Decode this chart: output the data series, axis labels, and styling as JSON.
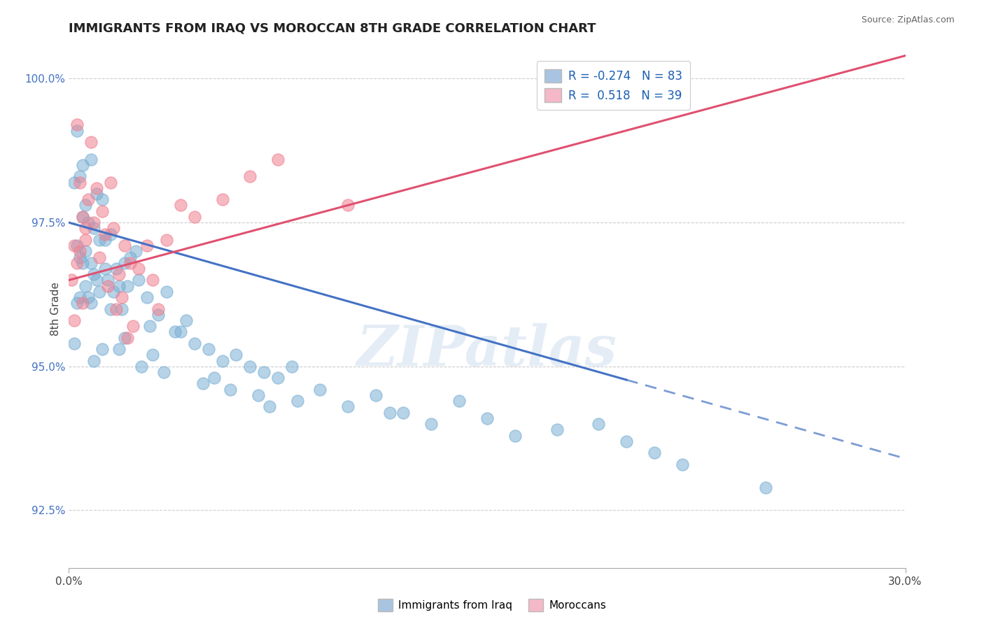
{
  "title": "IMMIGRANTS FROM IRAQ VS MOROCCAN 8TH GRADE CORRELATION CHART",
  "source_text": "Source: ZipAtlas.com",
  "ylabel": "8th Grade",
  "x_min": 0.0,
  "x_max": 30.0,
  "y_min": 91.5,
  "y_max": 100.5,
  "y_ticks": [
    92.5,
    95.0,
    97.5,
    100.0
  ],
  "x_ticks": [
    0.0,
    30.0
  ],
  "x_tick_labels": [
    "0.0%",
    "30.0%"
  ],
  "y_tick_labels": [
    "92.5%",
    "95.0%",
    "97.5%",
    "100.0%"
  ],
  "iraq_color": "#7bafd4",
  "moroccan_color": "#f08090",
  "iraq_line_color": "#4472c4",
  "moroccan_line_color": "#e05070",
  "iraq_line_solid_end": 20.0,
  "watermark": "ZIPatlas",
  "background_color": "#ffffff",
  "iraq_scatter": [
    [
      0.2,
      98.2
    ],
    [
      0.3,
      99.1
    ],
    [
      0.5,
      98.5
    ],
    [
      0.8,
      98.6
    ],
    [
      0.4,
      98.3
    ],
    [
      0.6,
      97.8
    ],
    [
      1.0,
      98.0
    ],
    [
      0.7,
      97.5
    ],
    [
      1.2,
      97.9
    ],
    [
      0.9,
      97.4
    ],
    [
      0.5,
      97.6
    ],
    [
      1.5,
      97.3
    ],
    [
      0.3,
      97.1
    ],
    [
      1.1,
      97.2
    ],
    [
      0.6,
      97.0
    ],
    [
      0.8,
      96.8
    ],
    [
      1.3,
      97.2
    ],
    [
      0.4,
      96.9
    ],
    [
      1.7,
      96.7
    ],
    [
      1.4,
      96.5
    ],
    [
      0.6,
      96.4
    ],
    [
      0.9,
      96.6
    ],
    [
      1.6,
      96.3
    ],
    [
      2.0,
      96.8
    ],
    [
      1.8,
      96.4
    ],
    [
      2.5,
      96.5
    ],
    [
      0.3,
      96.1
    ],
    [
      2.2,
      96.9
    ],
    [
      2.8,
      96.2
    ],
    [
      1.9,
      96.0
    ],
    [
      3.5,
      96.3
    ],
    [
      0.7,
      96.2
    ],
    [
      1.0,
      96.5
    ],
    [
      1.3,
      96.7
    ],
    [
      0.5,
      96.8
    ],
    [
      2.4,
      97.0
    ],
    [
      0.4,
      96.2
    ],
    [
      1.1,
      96.3
    ],
    [
      0.8,
      96.1
    ],
    [
      2.1,
      96.4
    ],
    [
      1.5,
      96.0
    ],
    [
      3.2,
      95.9
    ],
    [
      2.9,
      95.7
    ],
    [
      4.2,
      95.8
    ],
    [
      3.8,
      95.6
    ],
    [
      0.2,
      95.4
    ],
    [
      1.2,
      95.3
    ],
    [
      2.0,
      95.5
    ],
    [
      3.0,
      95.2
    ],
    [
      4.5,
      95.4
    ],
    [
      5.0,
      95.3
    ],
    [
      5.5,
      95.1
    ],
    [
      6.0,
      95.2
    ],
    [
      6.5,
      95.0
    ],
    [
      4.0,
      95.6
    ],
    [
      7.0,
      94.9
    ],
    [
      7.5,
      94.8
    ],
    [
      8.0,
      95.0
    ],
    [
      0.9,
      95.1
    ],
    [
      1.8,
      95.3
    ],
    [
      2.6,
      95.0
    ],
    [
      3.4,
      94.9
    ],
    [
      4.8,
      94.7
    ],
    [
      5.8,
      94.6
    ],
    [
      6.8,
      94.5
    ],
    [
      8.2,
      94.4
    ],
    [
      9.0,
      94.6
    ],
    [
      10.0,
      94.3
    ],
    [
      11.0,
      94.5
    ],
    [
      12.0,
      94.2
    ],
    [
      13.0,
      94.0
    ],
    [
      14.0,
      94.4
    ],
    [
      15.0,
      94.1
    ],
    [
      16.0,
      93.8
    ],
    [
      17.5,
      93.9
    ],
    [
      19.0,
      94.0
    ],
    [
      20.0,
      93.7
    ],
    [
      21.0,
      93.5
    ],
    [
      22.0,
      93.3
    ],
    [
      25.0,
      92.9
    ],
    [
      5.2,
      94.8
    ],
    [
      7.2,
      94.3
    ],
    [
      11.5,
      94.2
    ]
  ],
  "moroccan_scatter": [
    [
      0.3,
      99.2
    ],
    [
      0.5,
      97.6
    ],
    [
      0.8,
      98.9
    ],
    [
      0.4,
      98.2
    ],
    [
      0.6,
      97.4
    ],
    [
      1.0,
      98.1
    ],
    [
      0.7,
      97.9
    ],
    [
      1.2,
      97.7
    ],
    [
      0.9,
      97.5
    ],
    [
      1.5,
      98.2
    ],
    [
      0.2,
      97.1
    ],
    [
      1.1,
      96.9
    ],
    [
      1.3,
      97.3
    ],
    [
      0.6,
      97.2
    ],
    [
      1.6,
      97.4
    ],
    [
      0.4,
      97.0
    ],
    [
      1.8,
      96.6
    ],
    [
      2.0,
      97.1
    ],
    [
      0.3,
      96.8
    ],
    [
      0.5,
      96.1
    ],
    [
      1.7,
      96.0
    ],
    [
      2.8,
      97.1
    ],
    [
      2.5,
      96.7
    ],
    [
      3.0,
      96.5
    ],
    [
      3.5,
      97.2
    ],
    [
      4.0,
      97.8
    ],
    [
      4.5,
      97.6
    ],
    [
      5.5,
      97.9
    ],
    [
      6.5,
      98.3
    ],
    [
      7.5,
      98.6
    ],
    [
      0.1,
      96.5
    ],
    [
      1.4,
      96.4
    ],
    [
      2.2,
      96.8
    ],
    [
      10.0,
      97.8
    ],
    [
      0.2,
      95.8
    ],
    [
      2.1,
      95.5
    ],
    [
      2.3,
      95.7
    ],
    [
      1.9,
      96.2
    ],
    [
      3.2,
      96.0
    ]
  ]
}
